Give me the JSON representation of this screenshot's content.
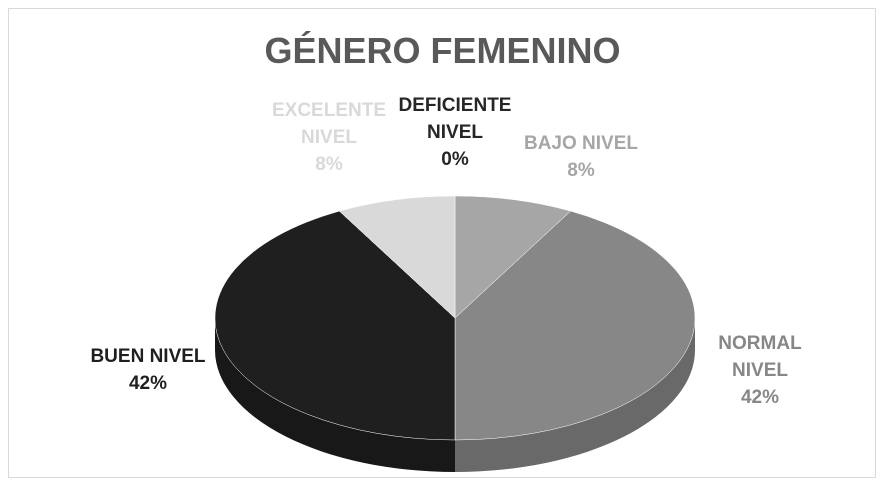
{
  "chart_data": {
    "type": "pie",
    "title": "GÉNERO FEMENINO",
    "categories": [
      "DEFICIENTE NIVEL",
      "BAJO NIVEL",
      "NORMAL NIVEL",
      "BUEN NIVEL",
      "EXCELENTE NIVEL"
    ],
    "values": [
      0,
      8,
      42,
      42,
      8
    ],
    "value_labels": [
      "0%",
      "8%",
      "42%",
      "42%",
      "8%"
    ],
    "colors": [
      "#262626",
      "#a6a6a6",
      "#878787",
      "#1f1f1f",
      "#d9d9d9"
    ]
  }
}
